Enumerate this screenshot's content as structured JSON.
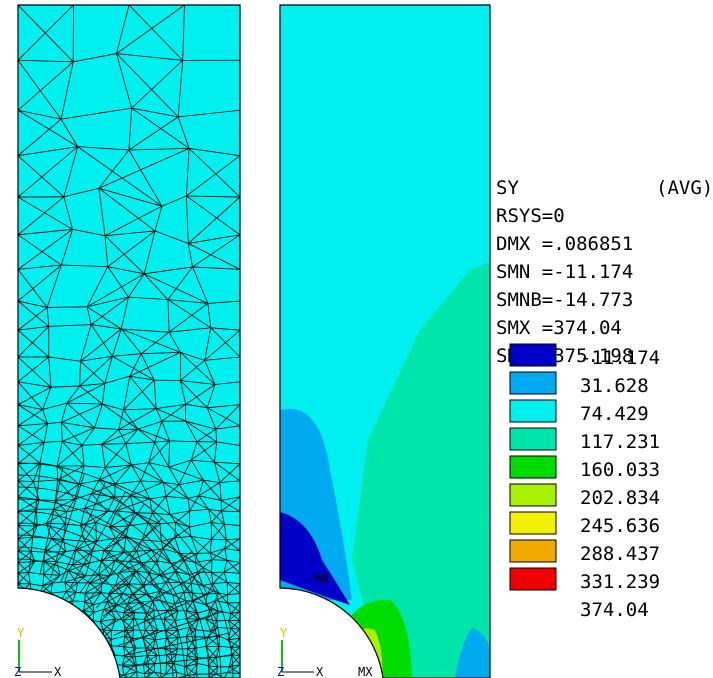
{
  "legend": {
    "header": [
      {
        "label": "SY",
        "value": "(AVG)"
      },
      {
        "label": "RSYS=0",
        "value": ""
      },
      {
        "label": "DMX =",
        "value": ".086851"
      },
      {
        "label": "SMN =",
        "value": "-11.174"
      },
      {
        "label": "SMNB=",
        "value": "-14.773"
      },
      {
        "label": "SMX =",
        "value": "374.04"
      },
      {
        "label": "SMXB=",
        "value": "375.198"
      }
    ],
    "levels": [
      "-11.174",
      "31.628",
      "74.429",
      "117.231",
      "160.033",
      "202.834",
      "245.636",
      "288.437",
      "331.239",
      "374.04"
    ],
    "colors": [
      "#0000c8",
      "#00aaf0",
      "#00f0f0",
      "#00e6aa",
      "#00dc00",
      "#aaf000",
      "#f0f000",
      "#f0aa00",
      "#f00000"
    ]
  },
  "triad": {
    "y_label": "Y",
    "x_label": "X",
    "z_label": "Z"
  },
  "markers": {
    "min_label": "MN",
    "max_label": "MX"
  },
  "colors": {
    "mesh_fill": "#00f0f0",
    "mesh_line": "#000000",
    "background": "#ffffff"
  }
}
